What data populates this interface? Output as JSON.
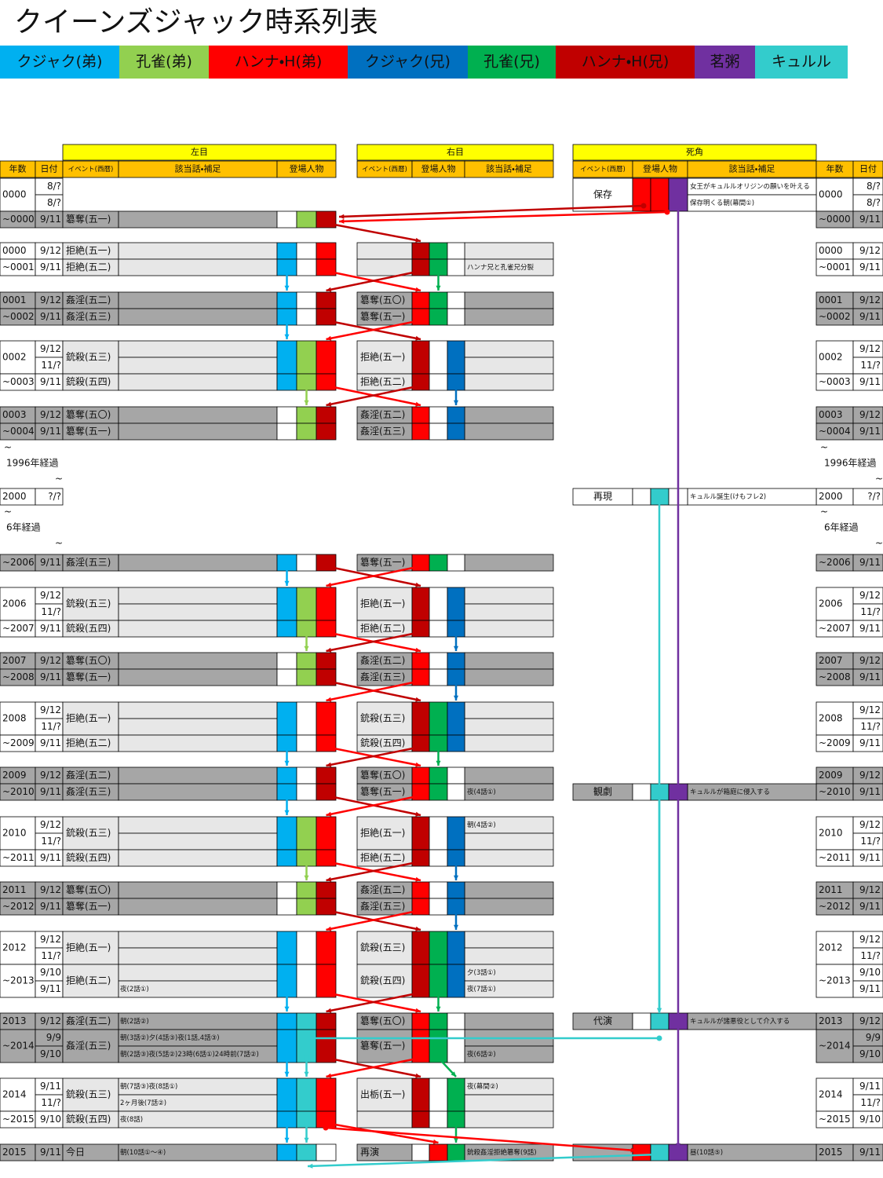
{
  "title": "クイーンズジャック時系列表",
  "legend": [
    {
      "name": "クジャク(弟)",
      "color": "#00b0f0"
    },
    {
      "name": "孔雀(弟)",
      "color": "#92d050"
    },
    {
      "name": "ハンナ・H(弟)",
      "color": "#ff0000"
    },
    {
      "name": "クジャク(兄)",
      "color": "#0070c0"
    },
    {
      "name": "孔雀(兄)",
      "color": "#00b050"
    },
    {
      "name": "ハンナ・H(兄)",
      "color": "#c00000"
    },
    {
      "name": "茗粥",
      "color": "#7030a0"
    },
    {
      "name": "キュルル",
      "color": "#33cccc"
    }
  ],
  "sections": {
    "left": "左目",
    "right": "右目",
    "dead": "死角"
  },
  "headers": {
    "year": "年数",
    "date": "日付",
    "event": "イベント(西暦)",
    "notes": "該当話・補足",
    "characters": "登場人物"
  },
  "blocks": [
    {
      "lines": [
        {
          "year": "0000",
          "dates": [
            "8/?",
            "8/?"
          ],
          "dead_event": "保存",
          "dead_notes": [
            "女王がキュルルオリジンの願いを叶える",
            "保存明くる朝(幕間①)"
          ]
        },
        {
          "year": "~0000",
          "dates": [
            "9/11"
          ],
          "left_event": "簒奪(五一)"
        }
      ]
    },
    {
      "lines": [
        {
          "year": "0000",
          "dates": [
            "9/12"
          ],
          "left_event": "拒絶(五一)"
        },
        {
          "year": "~0001",
          "dates": [
            "9/11"
          ],
          "left_event": "拒絶(五二)",
          "right_notes": [
            "ハンナ兄と孔雀兄分裂"
          ]
        }
      ]
    },
    {
      "lines": [
        {
          "year": "0001",
          "dates": [
            "9/12"
          ],
          "left_event": "姦淫(五二)",
          "right_event": "簒奪(五〇)"
        },
        {
          "year": "~0002",
          "dates": [
            "9/11"
          ],
          "left_event": "姦淫(五三)",
          "right_event": "簒奪(五一)"
        }
      ]
    },
    {
      "lines": [
        {
          "year": "0002",
          "dates": [
            "9/12",
            "11/?"
          ],
          "left_event": "銃殺(五三)",
          "right_event": "拒絶(五一)"
        },
        {
          "year": "~0003",
          "dates": [
            "9/11"
          ],
          "left_event": "銃殺(五四)",
          "right_event": "拒絶(五二)"
        }
      ]
    },
    {
      "lines": [
        {
          "year": "0003",
          "dates": [
            "9/12"
          ],
          "left_event": "簒奪(五〇)",
          "right_event": "姦淫(五二)"
        },
        {
          "year": "~0004",
          "dates": [
            "9/11"
          ],
          "left_event": "簒奪(五一)",
          "right_event": "姦淫(五三)"
        }
      ]
    },
    {
      "interval": "1996年経過",
      "marks": [
        "~",
        "~"
      ]
    },
    {
      "lines": [
        {
          "year": "2000",
          "dates": [
            "?/?"
          ],
          "dead_event": "再現",
          "dead_notes": [
            "キュルル誕生(けもフレ2)"
          ]
        }
      ]
    },
    {
      "interval": "6年経過",
      "marks": [
        "~",
        "~"
      ]
    },
    {
      "lines": [
        {
          "year": "~2006",
          "dates": [
            "9/11"
          ],
          "left_event": "姦淫(五三)",
          "right_event": "簒奪(五一)"
        }
      ]
    },
    {
      "lines": [
        {
          "year": "2006",
          "dates": [
            "9/12",
            "11/?"
          ],
          "left_event": "銃殺(五三)",
          "right_event": "拒絶(五一)"
        },
        {
          "year": "~2007",
          "dates": [
            "9/11"
          ],
          "left_event": "銃殺(五四)",
          "right_event": "拒絶(五二)"
        }
      ]
    },
    {
      "lines": [
        {
          "year": "2007",
          "dates": [
            "9/12"
          ],
          "left_event": "簒奪(五〇)",
          "right_event": "姦淫(五二)"
        },
        {
          "year": "~2008",
          "dates": [
            "9/11"
          ],
          "left_event": "簒奪(五一)",
          "right_event": "姦淫(五三)"
        }
      ]
    },
    {
      "lines": [
        {
          "year": "2008",
          "dates": [
            "9/12",
            "11/?"
          ],
          "left_event": "拒絶(五一)",
          "right_event": "銃殺(五三)"
        },
        {
          "year": "~2009",
          "dates": [
            "9/11"
          ],
          "left_event": "拒絶(五二)",
          "right_event": "銃殺(五四)"
        }
      ]
    },
    {
      "lines": [
        {
          "year": "2009",
          "dates": [
            "9/12"
          ],
          "left_event": "姦淫(五二)",
          "right_event": "簒奪(五〇)"
        },
        {
          "year": "~2010",
          "dates": [
            "9/11"
          ],
          "left_event": "姦淫(五三)",
          "right_event": "簒奪(五一)",
          "right_notes": [
            "夜(4話①)"
          ],
          "dead_event": "観劇",
          "dead_notes": [
            "キュルルが箱庭に侵入する"
          ]
        }
      ]
    },
    {
      "lines": [
        {
          "year": "2010",
          "dates": [
            "9/12",
            "11/?"
          ],
          "left_event": "銃殺(五三)",
          "right_event": "拒絶(五一)",
          "right_notes": [
            "朝(4話②)",
            null
          ]
        },
        {
          "year": "~2011",
          "dates": [
            "9/11"
          ],
          "left_event": "銃殺(五四)",
          "right_event": "拒絶(五二)"
        }
      ]
    },
    {
      "lines": [
        {
          "year": "2011",
          "dates": [
            "9/12"
          ],
          "left_event": "簒奪(五〇)",
          "right_event": "姦淫(五二)"
        },
        {
          "year": "~2012",
          "dates": [
            "9/11"
          ],
          "left_event": "簒奪(五一)",
          "right_event": "姦淫(五三)"
        }
      ]
    },
    {
      "lines": [
        {
          "year": "2012",
          "dates": [
            "9/12",
            "11/?"
          ],
          "left_event": "拒絶(五一)",
          "right_event": "銃殺(五三)"
        },
        {
          "year": "~2013",
          "dates": [
            "9/10",
            "9/11"
          ],
          "left_event": "拒絶(五二)",
          "left_notes": [
            null,
            "夜(2話①)"
          ],
          "right_event": "銃殺(五四)",
          "right_notes": [
            "夕(3話①)",
            "夜(7話①)"
          ]
        }
      ]
    },
    {
      "lines": [
        {
          "year": "2013",
          "dates": [
            "9/12"
          ],
          "left_event": "姦淫(五二)",
          "left_notes": [
            "朝(2話②)"
          ],
          "right_event": "簒奪(五〇)",
          "dead_event": "代演",
          "dead_notes": [
            "キュルルが諸悪役として介入する"
          ]
        },
        {
          "year": "~2014",
          "dates": [
            "9/9",
            "9/10"
          ],
          "left_event": "姦淫(五三)",
          "left_notes": [
            "朝(3話②)夕(4話③)夜(1話,4話③)",
            "朝(2話③)夜(5話②)23時(6話①)24時前(7話②)"
          ],
          "right_event": "簒奪(五一)",
          "right_notes": [
            null,
            "夜(6話②)"
          ]
        }
      ]
    },
    {
      "lines": [
        {
          "year": "2014",
          "dates": [
            "9/11",
            "11/?"
          ],
          "left_event": "銃殺(五三)",
          "left_notes": [
            "朝(7話③)夜(8話①)",
            "2ヶ月後(7話②)"
          ],
          "right_event": "出栃(五一)",
          "right_notes": [
            "夜(幕間②)",
            null
          ]
        },
        {
          "year": "~2015",
          "dates": [
            "9/10"
          ],
          "left_event": "銃殺(五四)",
          "left_notes": [
            "夜(8話)"
          ]
        }
      ]
    },
    {
      "lines": [
        {
          "year": "2015",
          "dates": [
            "9/11"
          ],
          "left_event": "今日",
          "left_notes": [
            "朝(10話①〜④)"
          ],
          "right_event": "再演",
          "right_notes": [
            "銃殺姦淫拒絶簒奪(9話)"
          ],
          "dead_notes": [
            "昼(10話⑤)"
          ]
        }
      ]
    }
  ]
}
